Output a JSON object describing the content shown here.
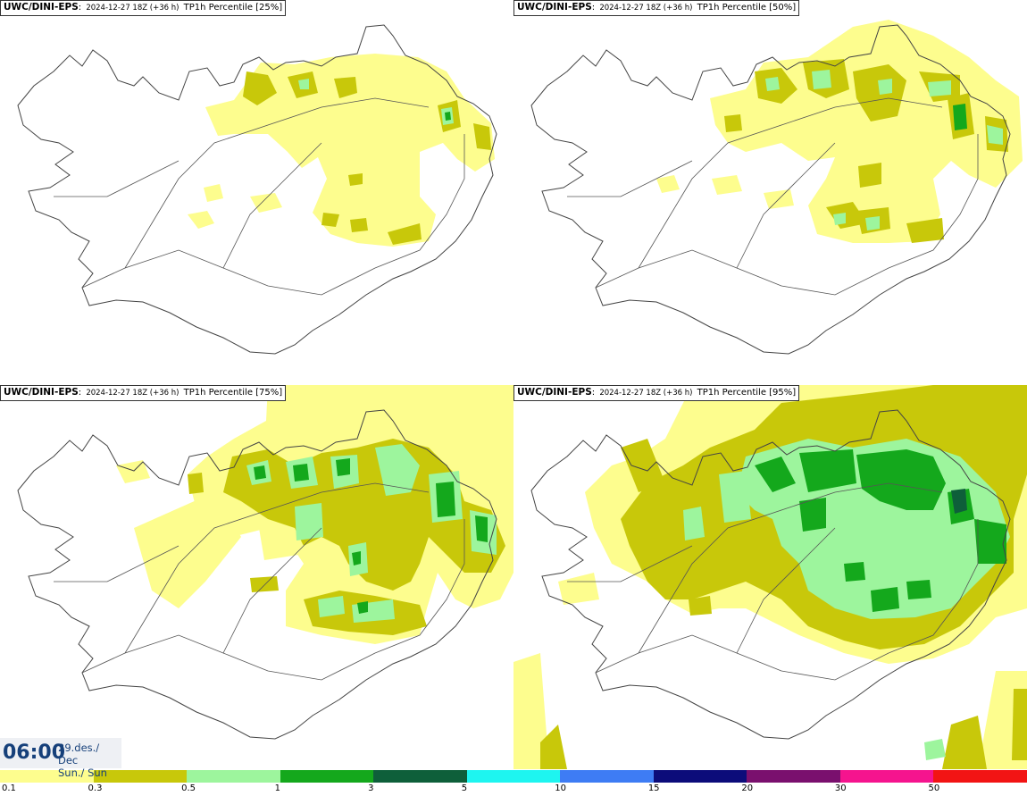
{
  "panels": [
    {
      "model": "UWC/DINI-EPS",
      "run": "2024-12-27 18Z (+36 h)",
      "param": "TP1h Percentile [25%]"
    },
    {
      "model": "UWC/DINI-EPS",
      "run": "2024-12-27 18Z (+36 h)",
      "param": "TP1h Percentile [50%]"
    },
    {
      "model": "UWC/DINI-EPS",
      "run": "2024-12-27 18Z (+36 h)",
      "param": "TP1h Percentile [75%]"
    },
    {
      "model": "UWC/DINI-EPS",
      "run": "2024-12-27 18Z (+36 h)",
      "param": "TP1h Percentile [95%]"
    }
  ],
  "valid_time": {
    "time": "06:00",
    "date": "29.des./ Dec",
    "day": "Sun./ Sun"
  },
  "legend": {
    "colors": [
      "#fdfd8e",
      "#c8c80a",
      "#9df59d",
      "#14a81c",
      "#0e5f3a",
      "#1ef5f0",
      "#3e7cf4",
      "#0c0c7a",
      "#7a106e",
      "#f5148e",
      "#f21414"
    ],
    "labels": [
      "0.1",
      "0.3",
      "0.5",
      "1",
      "3",
      "5",
      "10",
      "15",
      "20",
      "30",
      "50"
    ]
  },
  "colors": {
    "light_yellow": "#fdfd8e",
    "olive": "#c8c80a",
    "light_green": "#9df59d",
    "green": "#14a81c",
    "dark_green": "#0e5f3a",
    "coastline": "#444444",
    "roads": "#555555"
  }
}
